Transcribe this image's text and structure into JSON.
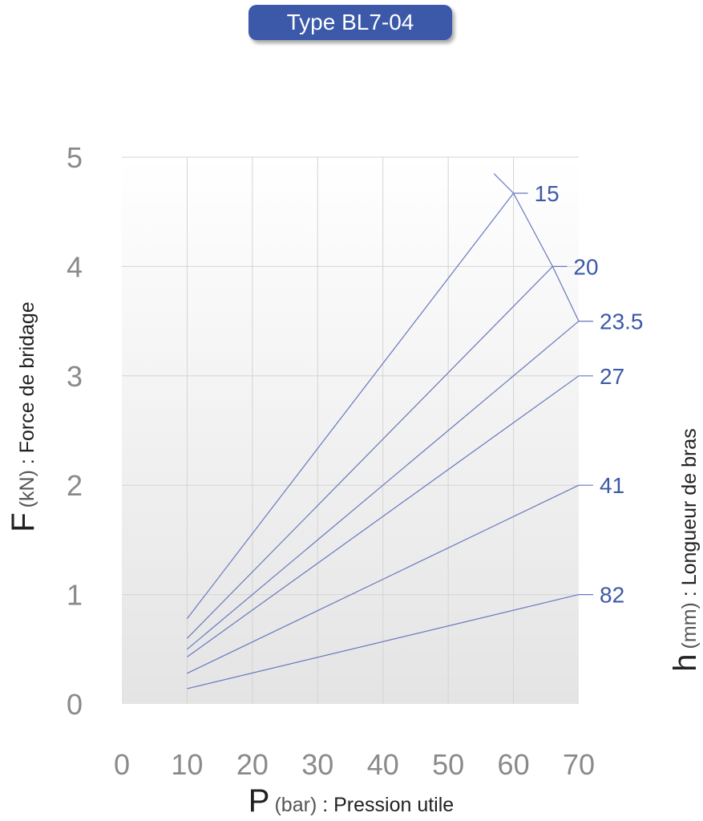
{
  "header": {
    "title": "Type BL7-04"
  },
  "chart_data": {
    "type": "line",
    "title": "Type BL7-04",
    "xlabel": {
      "symbol": "P",
      "unit": "(bar)",
      "text": " : Pression utile"
    },
    "ylabel": {
      "symbol": "F",
      "unit": "(kN)",
      "text": " : Force de bridage"
    },
    "y2label": {
      "symbol": "h",
      "unit": "(mm)",
      "text": " : Longueur de bras"
    },
    "x_ticks": [
      "0",
      "10",
      "20",
      "30",
      "40",
      "50",
      "60",
      "70"
    ],
    "y_ticks": [
      "0",
      "1",
      "2",
      "3",
      "4",
      "5"
    ],
    "xlim": [
      0,
      70
    ],
    "ylim": [
      0,
      5
    ],
    "grid": true,
    "series": [
      {
        "name": "15",
        "x": [
          10,
          60
        ],
        "y": [
          0.78,
          4.67
        ]
      },
      {
        "name": "20",
        "x": [
          10,
          66
        ],
        "y": [
          0.6,
          4.0
        ]
      },
      {
        "name": "23.5",
        "x": [
          10,
          70
        ],
        "y": [
          0.5,
          3.5
        ]
      },
      {
        "name": "27",
        "x": [
          10,
          70
        ],
        "y": [
          0.43,
          3.0
        ]
      },
      {
        "name": "41",
        "x": [
          10,
          70
        ],
        "y": [
          0.28,
          2.0
        ]
      },
      {
        "name": "82",
        "x": [
          10,
          70
        ],
        "y": [
          0.14,
          1.0
        ]
      }
    ],
    "envelope": {
      "x": [
        57,
        60,
        66,
        70
      ],
      "y": [
        4.85,
        4.67,
        4.0,
        3.5
      ]
    }
  },
  "colors": {
    "line": "#6878bf",
    "label": "#3b59a8",
    "badge": "#3b59a8",
    "tick": "#8a8a8a"
  }
}
